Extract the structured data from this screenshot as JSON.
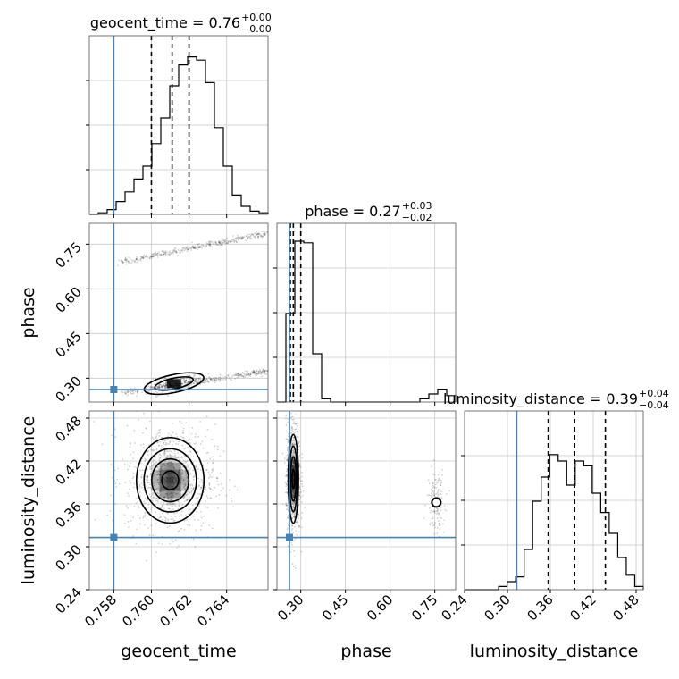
{
  "chart_data": {
    "type": "corner",
    "parameters": [
      {
        "name": "geocent_time",
        "truth": 0.758,
        "range": [
          0.7567,
          0.7662
        ],
        "ticks": [
          "0.758",
          "0.760",
          "0.762",
          "0.764"
        ],
        "tick_values": [
          0.758,
          0.76,
          0.762,
          0.764
        ]
      },
      {
        "name": "phase",
        "truth": 0.262,
        "range": [
          0.22,
          0.82
        ],
        "ticks": [
          "0.30",
          "0.45",
          "0.60",
          "0.75"
        ],
        "tick_values": [
          0.3,
          0.45,
          0.6,
          0.75
        ]
      },
      {
        "name": "luminosity_distance",
        "truth": 0.313,
        "range": [
          0.24,
          0.49
        ],
        "ticks": [
          "0.24",
          "0.30",
          "0.36",
          "0.42",
          "0.48"
        ],
        "tick_values": [
          0.24,
          0.3,
          0.36,
          0.42,
          0.48
        ]
      }
    ],
    "titles": [
      {
        "text": "geocent_time = 0.76",
        "sup": "+0.00",
        "sub": "−0.00"
      },
      {
        "text": "phase = 0.27",
        "sup": "+0.03",
        "sub": "−0.02"
      },
      {
        "text": "luminosity_distance = 0.39",
        "sup": "+0.04",
        "sub": "−0.04"
      }
    ],
    "quantiles": [
      [
        0.76,
        0.7611,
        0.762
      ],
      [
        0.265,
        0.275,
        0.3
      ],
      [
        0.357,
        0.394,
        0.437
      ]
    ],
    "histograms": [
      {
        "edges_range": [
          0.7567,
          0.7662
        ],
        "counts": [
          0.0,
          0.01,
          0.03,
          0.08,
          0.14,
          0.22,
          0.3,
          0.44,
          0.6,
          0.8,
          0.93,
          0.98,
          0.96,
          0.82,
          0.54,
          0.3,
          0.12,
          0.05,
          0.02,
          0.01
        ]
      },
      {
        "edges_range": [
          0.22,
          0.82
        ],
        "counts": [
          0.0,
          0.55,
          1.0,
          0.99,
          0.3,
          0.02,
          0.0,
          0.0,
          0.0,
          0.0,
          0.0,
          0.0,
          0.0,
          0.0,
          0.0,
          0.0,
          0.02,
          0.05,
          0.08,
          0.04
        ]
      },
      {
        "edges_range": [
          0.24,
          0.49
        ],
        "counts": [
          0.0,
          0.0,
          0.0,
          0.0,
          0.02,
          0.05,
          0.08,
          0.25,
          0.55,
          0.7,
          0.84,
          0.8,
          0.65,
          0.8,
          0.77,
          0.6,
          0.48,
          0.35,
          0.2,
          0.09,
          0.02
        ]
      }
    ],
    "grid": true,
    "truth_color": "#4682b4"
  }
}
